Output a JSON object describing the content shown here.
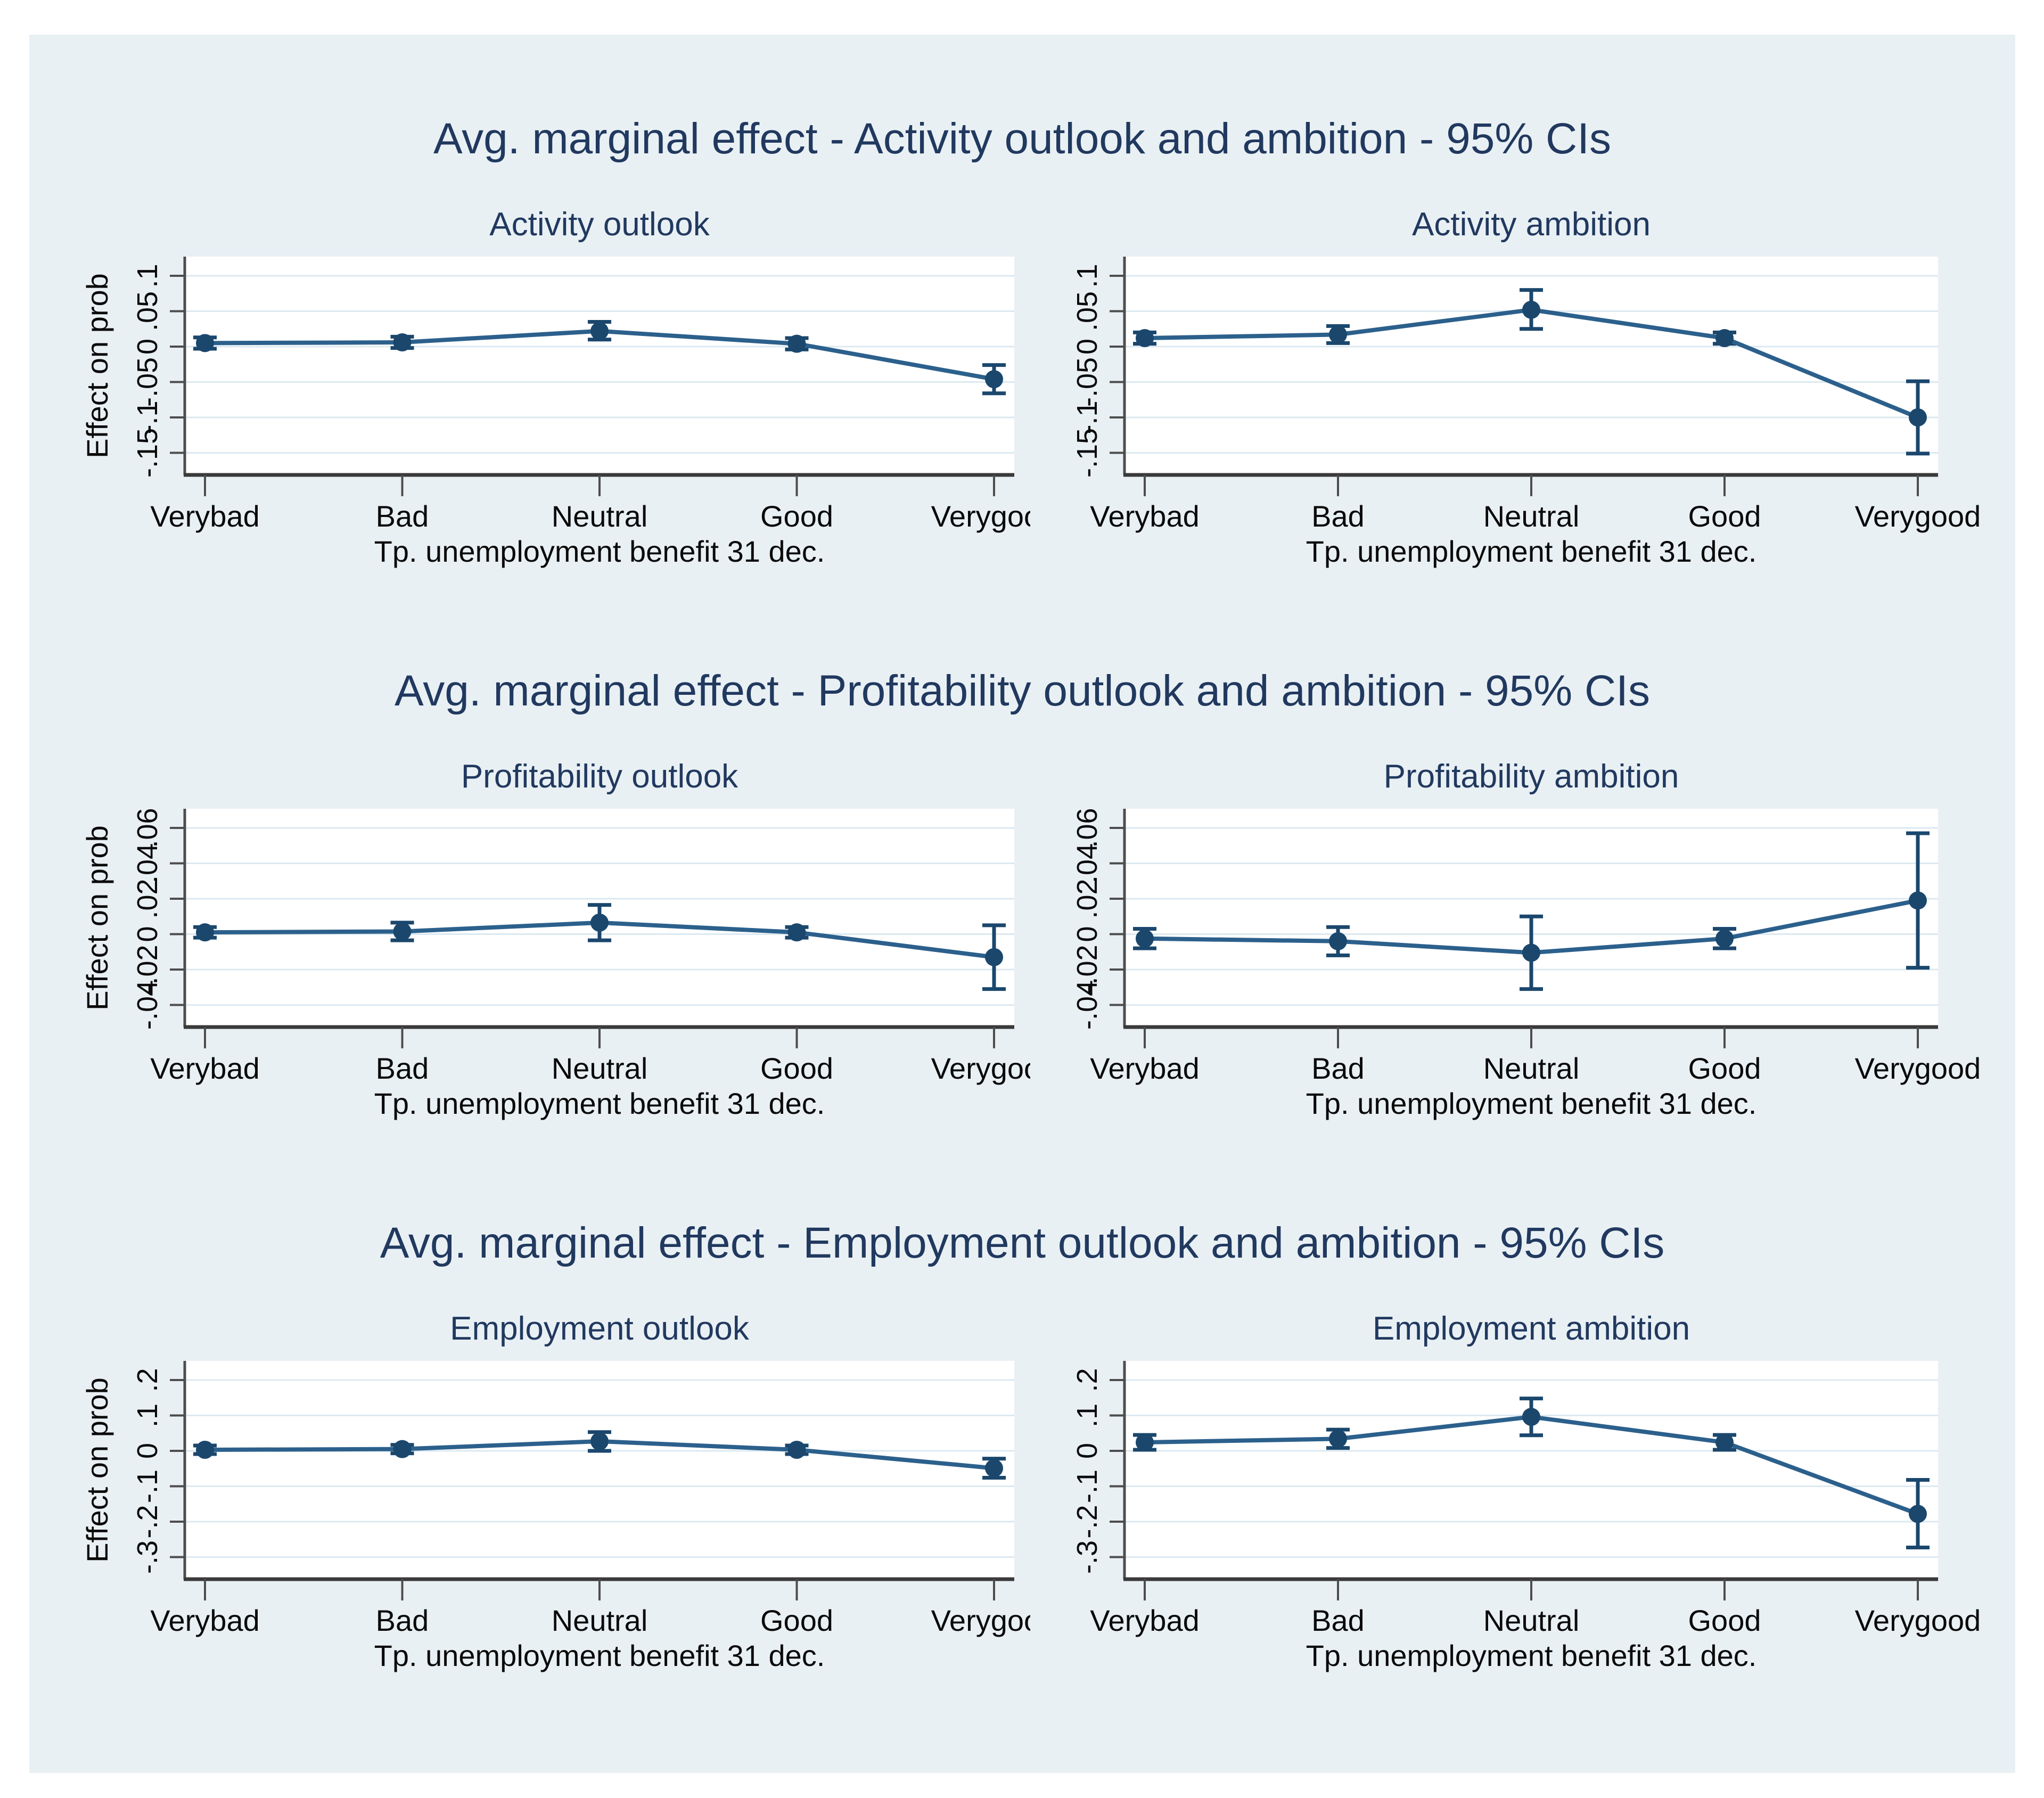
{
  "page": {
    "background": "#ffffff",
    "canvas_background": "#e9f0f4"
  },
  "colors": {
    "title_text": "#21395f",
    "marker": "#1b476d",
    "line": "#2c608c",
    "error_bar": "#1b476d",
    "gridline": "#dce9f1",
    "axis_line": "#4d4d4d",
    "tick_label": "#0a0a0a",
    "plot_background": "#ffffff"
  },
  "figures": [
    {
      "title": "Avg. marginal effect - Activity outlook and ambition - 95% CIs"
    },
    {
      "title": "Avg. marginal effect - Profitability outlook and ambition - 95% CIs"
    },
    {
      "title": "Avg. marginal effect - Employment outlook and ambition - 95% CIs"
    }
  ],
  "chart_data": [
    {
      "type": "line",
      "title": "Activity outlook",
      "categories": [
        "Verybad",
        "Bad",
        "Neutral",
        "Good",
        "Verygood"
      ],
      "values": [
        0.005,
        0.006,
        0.022,
        0.004,
        -0.046
      ],
      "ci_low": [
        -0.003,
        -0.002,
        0.01,
        -0.004,
        -0.066
      ],
      "ci_high": [
        0.013,
        0.014,
        0.035,
        0.012,
        -0.026
      ],
      "xlabel": "Tp. unemployment benefit 31 dec.",
      "ylabel": "Effect on prob",
      "yticks": [
        {
          "value": 0.1,
          "label": ".1"
        },
        {
          "value": 0.05,
          "label": ".05"
        },
        {
          "value": 0,
          "label": "0"
        },
        {
          "value": -0.05,
          "label": "-.05"
        },
        {
          "value": -0.1,
          "label": "-.1"
        },
        {
          "value": -0.15,
          "label": "-.15"
        }
      ],
      "ylim": [
        -0.181,
        0.127
      ],
      "grid": true,
      "legend": "none",
      "y_tick_rotation": 90,
      "last_label_clipped": true
    },
    {
      "type": "line",
      "title": "Activity ambition",
      "categories": [
        "Verybad",
        "Bad",
        "Neutral",
        "Good",
        "Verygood"
      ],
      "values": [
        0.012,
        0.017,
        0.052,
        0.012,
        -0.1
      ],
      "ci_low": [
        0.004,
        0.005,
        0.025,
        0.004,
        -0.151
      ],
      "ci_high": [
        0.02,
        0.029,
        0.08,
        0.02,
        -0.049
      ],
      "xlabel": "Tp. unemployment benefit 31 dec.",
      "ylabel": "",
      "yticks": [
        {
          "value": 0.1,
          "label": ".1"
        },
        {
          "value": 0.05,
          "label": ".05"
        },
        {
          "value": 0,
          "label": "0"
        },
        {
          "value": -0.05,
          "label": "-.05"
        },
        {
          "value": -0.1,
          "label": "-.1"
        },
        {
          "value": -0.15,
          "label": "-.15"
        }
      ],
      "ylim": [
        -0.181,
        0.127
      ],
      "grid": true,
      "legend": "none",
      "y_tick_rotation": 90,
      "last_label_clipped": false
    },
    {
      "type": "line",
      "title": "Profitability outlook",
      "categories": [
        "Verybad",
        "Bad",
        "Neutral",
        "Good",
        "Verygood"
      ],
      "values": [
        0.001,
        0.0015,
        0.0065,
        0.001,
        -0.013
      ],
      "ci_low": [
        -0.002,
        -0.0035,
        -0.0035,
        -0.002,
        -0.031
      ],
      "ci_high": [
        0.004,
        0.0065,
        0.0165,
        0.004,
        0.005
      ],
      "xlabel": "Tp. unemployment benefit 31 dec.",
      "ylabel": "Effect on prob",
      "yticks": [
        {
          "value": 0.06,
          "label": ".06"
        },
        {
          "value": 0.04,
          "label": ".04"
        },
        {
          "value": 0.02,
          "label": ".02"
        },
        {
          "value": 0,
          "label": "0"
        },
        {
          "value": -0.02,
          "label": "-.02"
        },
        {
          "value": -0.04,
          "label": "-.04"
        }
      ],
      "ylim": [
        -0.0525,
        0.071
      ],
      "grid": true,
      "legend": "none",
      "y_tick_rotation": 90,
      "last_label_clipped": true
    },
    {
      "type": "line",
      "title": "Profitability ambition",
      "categories": [
        "Verybad",
        "Bad",
        "Neutral",
        "Good",
        "Verygood"
      ],
      "values": [
        -0.0025,
        -0.004,
        -0.0105,
        -0.0025,
        0.019
      ],
      "ci_low": [
        -0.008,
        -0.012,
        -0.031,
        -0.008,
        -0.019
      ],
      "ci_high": [
        0.003,
        0.004,
        0.01,
        0.003,
        0.057
      ],
      "xlabel": "Tp. unemployment benefit 31 dec.",
      "ylabel": "",
      "yticks": [
        {
          "value": 0.06,
          "label": ".06"
        },
        {
          "value": 0.04,
          "label": ".04"
        },
        {
          "value": 0.02,
          "label": ".02"
        },
        {
          "value": 0,
          "label": "0"
        },
        {
          "value": -0.02,
          "label": "-.02"
        },
        {
          "value": -0.04,
          "label": "-.04"
        }
      ],
      "ylim": [
        -0.0525,
        0.071
      ],
      "grid": true,
      "legend": "none",
      "y_tick_rotation": 90,
      "last_label_clipped": false
    },
    {
      "type": "line",
      "title": "Employment outlook",
      "categories": [
        "Verybad",
        "Bad",
        "Neutral",
        "Good",
        "Verygood"
      ],
      "values": [
        0.003,
        0.005,
        0.027,
        0.003,
        -0.049
      ],
      "ci_low": [
        -0.009,
        -0.007,
        0.0,
        -0.009,
        -0.076
      ],
      "ci_high": [
        0.015,
        0.017,
        0.053,
        0.015,
        -0.022
      ],
      "xlabel": "Tp. unemployment benefit 31 dec.",
      "ylabel": "Effect on prob",
      "yticks": [
        {
          "value": 0.2,
          "label": ".2"
        },
        {
          "value": 0.1,
          "label": ".1"
        },
        {
          "value": 0,
          "label": "0"
        },
        {
          "value": -0.1,
          "label": "-.1"
        },
        {
          "value": -0.2,
          "label": "-.2"
        },
        {
          "value": -0.3,
          "label": "-.3"
        }
      ],
      "ylim": [
        -0.362,
        0.254
      ],
      "grid": true,
      "legend": "none",
      "y_tick_rotation": 90,
      "last_label_clipped": true
    },
    {
      "type": "line",
      "title": "Employment ambition",
      "categories": [
        "Verybad",
        "Bad",
        "Neutral",
        "Good",
        "Verygood"
      ],
      "values": [
        0.024,
        0.034,
        0.096,
        0.024,
        -0.178
      ],
      "ci_low": [
        0.003,
        0.008,
        0.044,
        0.003,
        -0.273
      ],
      "ci_high": [
        0.045,
        0.06,
        0.148,
        0.045,
        -0.082
      ],
      "xlabel": "Tp. unemployment benefit 31 dec.",
      "ylabel": "",
      "yticks": [
        {
          "value": 0.2,
          "label": ".2"
        },
        {
          "value": 0.1,
          "label": ".1"
        },
        {
          "value": 0,
          "label": "0"
        },
        {
          "value": -0.1,
          "label": "-.1"
        },
        {
          "value": -0.2,
          "label": "-.2"
        },
        {
          "value": -0.3,
          "label": "-.3"
        }
      ],
      "ylim": [
        -0.362,
        0.254
      ],
      "grid": true,
      "legend": "none",
      "y_tick_rotation": 90,
      "last_label_clipped": false
    }
  ]
}
